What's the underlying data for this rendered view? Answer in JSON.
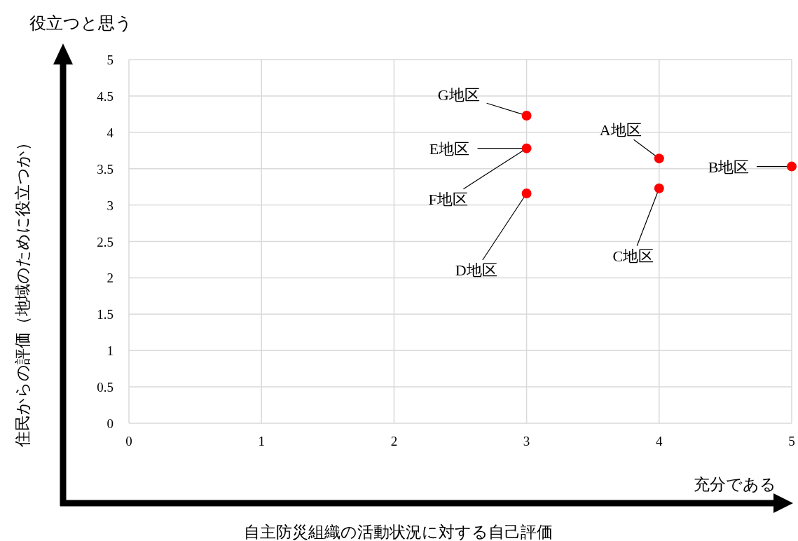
{
  "chart_data": {
    "type": "scatter",
    "xlabel": "自主防災組織の活動状況に対する自己評価",
    "ylabel": "住民からの評価（地域のために役立つか）",
    "x": [
      3,
      3,
      3,
      4,
      4,
      5
    ],
    "series": [
      {
        "color": "#ff0000",
        "values": [
          4.23,
          3.78,
          3.16,
          3.64,
          3.23,
          3.53
        ]
      }
    ],
    "xlim": [
      0,
      5
    ],
    "xticks": [
      0,
      1,
      2,
      3,
      4,
      5
    ],
    "ylim": [
      0,
      5
    ],
    "yticks": [
      0,
      0.5,
      1,
      1.5,
      2,
      2.5,
      3,
      3.5,
      4,
      4.5,
      5
    ],
    "grid": true,
    "marker": "circle",
    "annotations": [
      "役立つと思う",
      "充分である",
      {
        "text": "G地区",
        "x": 3,
        "y": 4.23
      },
      {
        "text": "E地区",
        "x": 3,
        "y": 3.78
      },
      {
        "text": "F地区",
        "x": 3,
        "y": 3.78
      },
      {
        "text": "D地区",
        "x": 3,
        "y": 3.16
      },
      {
        "text": "A地区",
        "x": 4,
        "y": 3.64
      },
      {
        "text": "C地区",
        "x": 4,
        "y": 3.23
      },
      {
        "text": "B地区",
        "x": 5,
        "y": 3.53
      }
    ]
  }
}
